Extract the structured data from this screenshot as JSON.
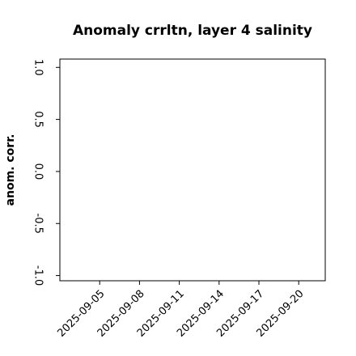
{
  "chart_data": {
    "type": "line",
    "title": "Anomaly crrltn, layer 4 salinity",
    "y_label": "anom. corr.",
    "x": [],
    "series": [],
    "xlim": [
      "2025-09-02",
      "2025-09-22"
    ],
    "xticks": [
      "2025-09-05",
      "2025-09-08",
      "2025-09-11",
      "2025-09-14",
      "2025-09-17",
      "2025-09-20"
    ],
    "xtick_colors": [
      "#000000",
      "#000000",
      "#228b22",
      "#000000",
      "#000000",
      "#000000"
    ],
    "ylim": [
      -1.05,
      1.08
    ],
    "yticks": [
      {
        "value": -1,
        "label": "-1.0"
      },
      {
        "value": -0.5,
        "label": "-0.5"
      },
      {
        "value": 0,
        "label": "0.0"
      },
      {
        "value": 0.5,
        "label": "0.5"
      },
      {
        "value": 1,
        "label": "1.0"
      }
    ],
    "grid": false
  }
}
